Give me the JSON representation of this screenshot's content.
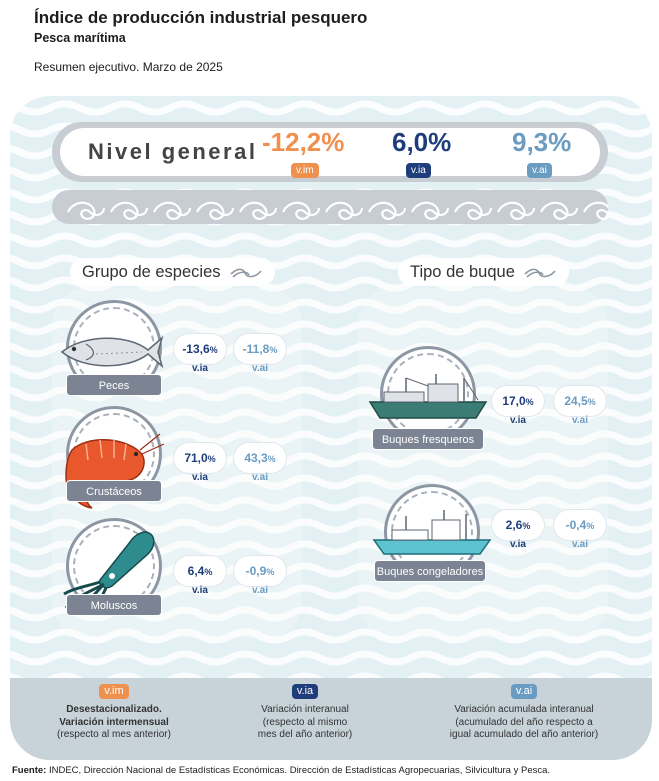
{
  "header": {
    "title": "Índice de producción industrial pesquero",
    "subtitle": "Pesca marítima",
    "summary": "Resumen ejecutivo. Marzo de 2025"
  },
  "nivel_general": {
    "label": "Nivel general",
    "vim": {
      "value": "-12,2%",
      "tag": "v.im"
    },
    "via": {
      "value": "6,0%",
      "tag": "v.ia"
    },
    "vai": {
      "value": "9,3%",
      "tag": "v.ai"
    }
  },
  "species": {
    "title": "Grupo de especies",
    "items": [
      {
        "name": "Peces",
        "via": "-13,6",
        "vai": "-11,8",
        "tag_via": "v.ia",
        "tag_vai": "v.ai"
      },
      {
        "name": "Crustáceos",
        "via": "71,0",
        "vai": "43,3",
        "tag_via": "v.ia",
        "tag_vai": "v.ai"
      },
      {
        "name": "Moluscos",
        "via": "6,4",
        "vai": "-0,9",
        "tag_via": "v.ia",
        "tag_vai": "v.ai"
      }
    ]
  },
  "vessels": {
    "title": "Tipo de buque",
    "items": [
      {
        "name": "Buques fresqueros",
        "via": "17,0",
        "vai": "24,5",
        "tag_via": "v.ia",
        "tag_vai": "v.ai"
      },
      {
        "name": "Buques congeladores",
        "via": "2,6",
        "vai": "-0,4",
        "tag_via": "v.ia",
        "tag_vai": "v.ai"
      }
    ]
  },
  "pct_sign": "%",
  "legend": {
    "vim": {
      "tag": "v.im",
      "lines": [
        "Desestacionalizado.",
        "Variación intermensual",
        "(respecto al mes anterior)"
      ]
    },
    "via": {
      "tag": "v.ia",
      "lines": [
        "Variación interanual",
        "(respecto al mismo",
        "mes del año anterior)"
      ]
    },
    "vai": {
      "tag": "v.ai",
      "lines": [
        "Variación acumulada interanual",
        "(acumulado del año respecto a",
        "igual acumulado del año anterior)"
      ]
    }
  },
  "source": {
    "label": "Fuente:",
    "text": "INDEC, Dirección Nacional de Estadísticas Económicas. Dirección de Estadísticas Agropecuarias, Silvicultura y Pesca."
  },
  "colors": {
    "vim": "#f0904f",
    "via": "#1f3d7a",
    "vai": "#6a9bc0",
    "panel": "#e3f1f4",
    "label_bg": "#7c8493"
  }
}
